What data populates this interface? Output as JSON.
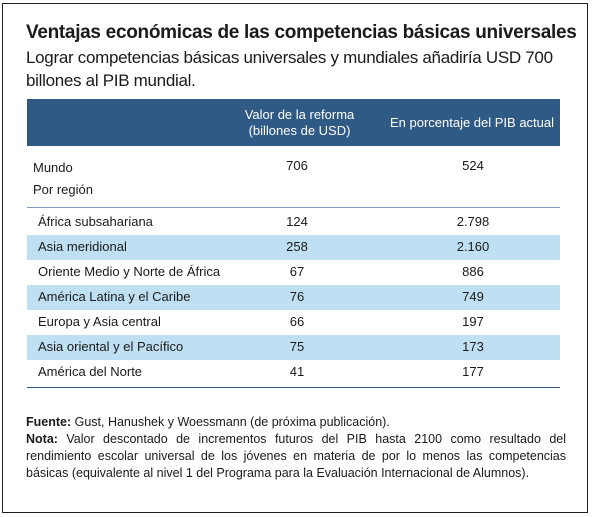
{
  "title": "Ventajas económicas de las competencias básicas universales",
  "subtitle": "Lograr competencias básicas universales y mundiales añadiría USD 700 billones al PIB mundial.",
  "table": {
    "columns": [
      "Valor de la reforma (billones de USD)",
      "En porcentaje del PIB actual"
    ],
    "world": {
      "label": "Mundo",
      "value": "706",
      "pct": "524"
    },
    "region_label": "Por región",
    "rows": [
      {
        "name": "África subsahariana",
        "value": "124",
        "pct": "2.798"
      },
      {
        "name": "Asia meridional",
        "value": "258",
        "pct": "2.160"
      },
      {
        "name": "Oriente Medio y Norte de África",
        "value": "67",
        "pct": "886"
      },
      {
        "name": "América Latina y el Caribe",
        "value": "76",
        "pct": "749"
      },
      {
        "name": "Europa y Asia central",
        "value": "66",
        "pct": "197"
      },
      {
        "name": "Asia oriental y el Pacífico",
        "value": "75",
        "pct": "173"
      },
      {
        "name": "América del Norte",
        "value": "41",
        "pct": "177"
      }
    ]
  },
  "source": {
    "label": "Fuente:",
    "text": " Gust, Hanushek y Woessmann (de próxima publicación)."
  },
  "note": {
    "label": "Nota:",
    "text": " Valor descontado de incrementos futuros del PIB hasta 2100 como resultado del rendimiento escolar universal de los jóvenes en materia de por lo menos las competencias básicas (equivalente al nivel 1 del Programa para la Evaluación Internacional de Alumnos)."
  },
  "colors": {
    "header": "#2f5a85",
    "shaded_row": "#bfe0f3"
  }
}
